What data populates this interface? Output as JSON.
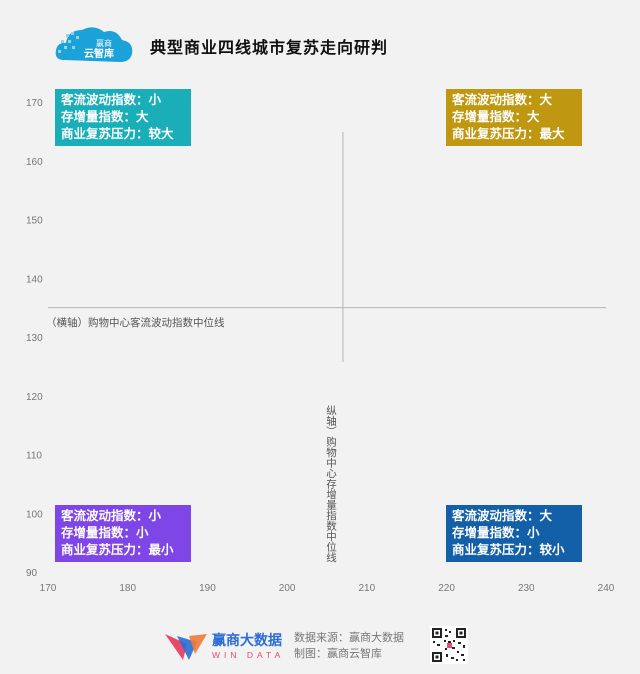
{
  "brand": {
    "logo_top": "赢商",
    "logo_bottom": "云智库"
  },
  "title": "典型商业四线城市复苏走向研判",
  "quadrants": {
    "top_left": {
      "lines": [
        "客流波动指数：小",
        "存增量指数：大",
        "商业复苏压力：较大"
      ],
      "color": "#1aaeb8"
    },
    "top_right": {
      "lines": [
        "客流波动指数：大",
        "存增量指数：大",
        "商业复苏压力：最大"
      ],
      "color": "#c09711"
    },
    "bottom_left": {
      "lines": [
        "客流波动指数：小",
        "存增量指数：小",
        "商业复苏压力：最小"
      ],
      "color": "#7e46e6"
    },
    "bottom_right": {
      "lines": [
        "客流波动指数：大",
        "存增量指数：小",
        "商业复苏压力：较小"
      ],
      "color": "#135fa8"
    }
  },
  "chart_data": {
    "type": "scatter",
    "title": "典型商业四线城市复苏走向研判",
    "xlabel": "（横轴）购物中心客流波动指数中位线",
    "ylabel": "纵轴）购物中心存增量指数中位线",
    "xlim": [
      170,
      240
    ],
    "ylim": [
      90,
      170
    ],
    "x_ticks": [
      170,
      180,
      190,
      200,
      210,
      220,
      230,
      240
    ],
    "y_ticks": [
      90,
      100,
      110,
      120,
      130,
      140,
      150,
      160,
      170
    ],
    "x_median": 207,
    "y_median": 135,
    "grid": false,
    "points": []
  },
  "footer": {
    "wind_cn": "赢商大数据",
    "wind_en": "WIN DATA",
    "source_line": "数据来源：赢商大数据",
    "maker_line": "制图：赢商云智库"
  }
}
